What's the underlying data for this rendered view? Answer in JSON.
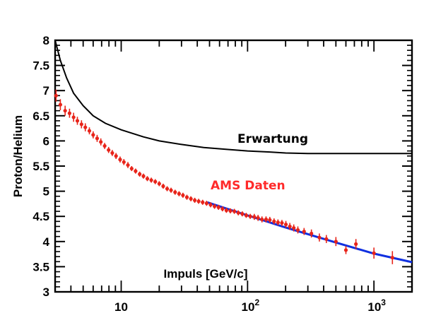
{
  "chart_data": {
    "type": "scatter",
    "title": "",
    "xlabel": "Impuls [GeV/c]",
    "ylabel": "Proton/Helium",
    "xscale": "log",
    "xlim": [
      3,
      2000
    ],
    "ylim": [
      3,
      8
    ],
    "grid": false,
    "legend": "none",
    "x_ticks": [
      {
        "value": 10,
        "base": "10",
        "exp": ""
      },
      {
        "value": 100,
        "base": "10",
        "exp": "2"
      },
      {
        "value": 1000,
        "base": "10",
        "exp": "3"
      }
    ],
    "y_ticks": [
      "3",
      "3.5",
      "4",
      "4.5",
      "5",
      "5.5",
      "6",
      "6.5",
      "7",
      "7.5",
      "8"
    ],
    "annotations": [
      {
        "text": "Erwartung",
        "color": "#000000"
      },
      {
        "text": "AMS Daten",
        "color": "#ff2a2a"
      }
    ],
    "series": [
      {
        "kind": "line",
        "color": "#000000",
        "x": [
          3.0,
          3.3,
          3.7,
          4.2,
          5.0,
          6.0,
          7.5,
          10,
          15,
          20,
          30,
          45,
          70,
          100,
          150,
          200,
          300,
          500,
          1000,
          2000
        ],
        "y": [
          8.0,
          7.6,
          7.25,
          6.95,
          6.7,
          6.5,
          6.35,
          6.22,
          6.08,
          6.0,
          5.93,
          5.87,
          5.83,
          5.8,
          5.78,
          5.76,
          5.75,
          5.75,
          5.75,
          5.75
        ]
      },
      {
        "kind": "line",
        "color": "#1030e0",
        "x": [
          48,
          100,
          200,
          500,
          1000,
          2000
        ],
        "y": [
          4.78,
          4.52,
          4.28,
          3.98,
          3.76,
          3.59
        ]
      },
      {
        "kind": "points",
        "color": "#e8241a",
        "x": [
          3.05,
          3.3,
          3.6,
          3.9,
          4.2,
          4.5,
          4.85,
          5.2,
          5.6,
          6.0,
          6.45,
          6.9,
          7.4,
          7.95,
          8.5,
          9.1,
          9.8,
          10.5,
          11.3,
          12.1,
          13.0,
          14.0,
          15.0,
          16.1,
          17.3,
          18.6,
          20.0,
          21.5,
          23.1,
          24.8,
          26.7,
          28.7,
          30.8,
          33.1,
          35.6,
          38.2,
          41.0,
          44.1,
          47.4,
          51.0,
          54.8,
          58.9,
          63.3,
          68.0,
          73.1,
          78.6,
          84.5,
          90.8,
          97.6,
          105,
          113,
          121,
          130,
          140,
          150,
          162,
          174,
          187,
          201,
          216,
          232,
          250,
          280,
          320,
          370,
          420,
          500,
          600,
          720,
          1000,
          1400
        ],
        "y": [
          6.9,
          6.72,
          6.6,
          6.55,
          6.47,
          6.4,
          6.33,
          6.27,
          6.2,
          6.12,
          6.05,
          5.98,
          5.9,
          5.82,
          5.76,
          5.7,
          5.63,
          5.58,
          5.52,
          5.45,
          5.4,
          5.34,
          5.3,
          5.25,
          5.22,
          5.19,
          5.15,
          5.1,
          5.05,
          5.02,
          4.98,
          4.95,
          4.92,
          4.88,
          4.85,
          4.82,
          4.8,
          4.78,
          4.76,
          4.73,
          4.7,
          4.68,
          4.65,
          4.62,
          4.61,
          4.6,
          4.57,
          4.55,
          4.52,
          4.5,
          4.49,
          4.47,
          4.44,
          4.44,
          4.43,
          4.4,
          4.38,
          4.37,
          4.34,
          4.3,
          4.27,
          4.23,
          4.2,
          4.16,
          4.08,
          4.05,
          4.0,
          3.83,
          3.95,
          3.77,
          3.68
        ],
        "err": [
          0.12,
          0.11,
          0.1,
          0.09,
          0.09,
          0.08,
          0.08,
          0.08,
          0.07,
          0.07,
          0.07,
          0.07,
          0.06,
          0.06,
          0.06,
          0.06,
          0.06,
          0.06,
          0.06,
          0.05,
          0.05,
          0.05,
          0.05,
          0.05,
          0.05,
          0.05,
          0.05,
          0.05,
          0.05,
          0.05,
          0.05,
          0.05,
          0.05,
          0.05,
          0.05,
          0.05,
          0.05,
          0.05,
          0.05,
          0.05,
          0.05,
          0.05,
          0.05,
          0.05,
          0.05,
          0.05,
          0.05,
          0.05,
          0.05,
          0.05,
          0.06,
          0.06,
          0.06,
          0.06,
          0.06,
          0.06,
          0.06,
          0.06,
          0.07,
          0.07,
          0.07,
          0.07,
          0.07,
          0.08,
          0.08,
          0.08,
          0.09,
          0.08,
          0.1,
          0.11,
          0.13
        ]
      }
    ]
  }
}
